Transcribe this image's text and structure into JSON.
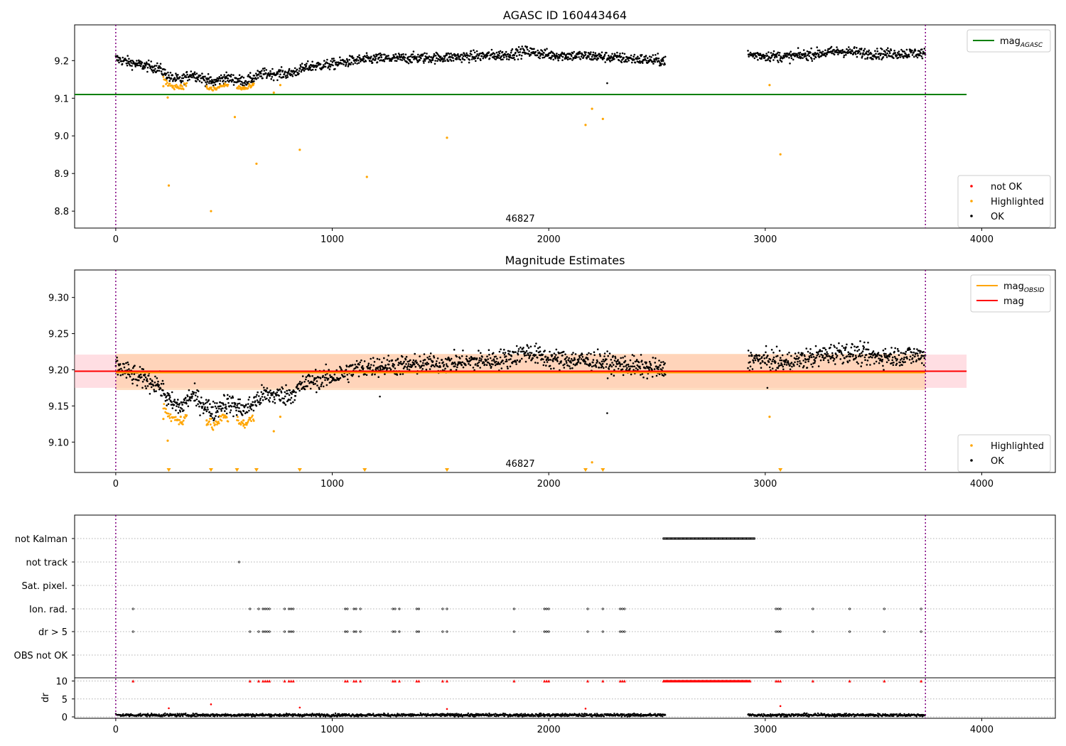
{
  "chart_data": [
    {
      "type": "scatter",
      "title": "AGASC ID 160443464",
      "annotation": "46827",
      "xlim": [
        -190,
        4340
      ],
      "ylim": [
        8.755,
        9.295
      ],
      "x_ticks": [
        0,
        1000,
        2000,
        3000,
        4000
      ],
      "y_ticks": [
        8.8,
        8.9,
        9.0,
        9.1,
        9.2
      ],
      "vlines": [
        0,
        3740
      ],
      "hline": {
        "name": "mag_AGASC",
        "y": 9.11,
        "x_range": [
          -190,
          3930
        ],
        "color": "#008000"
      },
      "legend_upper": {
        "position": "top-right",
        "entries": [
          {
            "label": "mag",
            "sub": "AGASC",
            "color": "#008000"
          }
        ]
      },
      "legend_lower": {
        "position": "bottom-right",
        "entries": [
          {
            "label": "not OK",
            "color": "#ff0000"
          },
          {
            "label": "Highlighted",
            "color": "#ffa500"
          },
          {
            "label": "OK",
            "color": "#000000"
          }
        ]
      },
      "series": [
        {
          "name": "OK",
          "color": "#000000",
          "trend": [
            [
              0,
              9.205
            ],
            [
              100,
              9.19
            ],
            [
              200,
              9.18
            ],
            [
              250,
              9.155
            ],
            [
              300,
              9.148
            ],
            [
              350,
              9.165
            ],
            [
              450,
              9.142
            ],
            [
              500,
              9.155
            ],
            [
              600,
              9.145
            ],
            [
              680,
              9.165
            ],
            [
              800,
              9.165
            ],
            [
              900,
              9.185
            ],
            [
              1000,
              9.19
            ],
            [
              1100,
              9.2
            ],
            [
              1200,
              9.205
            ],
            [
              1500,
              9.208
            ],
            [
              1800,
              9.215
            ],
            [
              1900,
              9.225
            ],
            [
              2000,
              9.215
            ],
            [
              2200,
              9.212
            ],
            [
              2520,
              9.2
            ],
            [
              2930,
              9.215
            ],
            [
              3100,
              9.21
            ],
            [
              3350,
              9.225
            ],
            [
              3500,
              9.218
            ],
            [
              3740,
              9.22
            ]
          ],
          "gaps": [
            [
              2540,
              2920
            ]
          ],
          "outliers": [
            [
              2270,
              9.14
            ]
          ]
        },
        {
          "name": "Highlighted",
          "color": "#ffa500",
          "points": [
            [
              220,
              9.132
            ],
            [
              240,
              9.102
            ],
            [
              245,
              8.868
            ],
            [
              300,
              9.135
            ],
            [
              420,
              9.13
            ],
            [
              440,
              8.8
            ],
            [
              550,
              9.05
            ],
            [
              590,
              9.13
            ],
            [
              650,
              8.926
            ],
            [
              730,
              9.115
            ],
            [
              760,
              9.135
            ],
            [
              850,
              8.963
            ],
            [
              1160,
              8.891
            ],
            [
              1530,
              8.995
            ],
            [
              2170,
              9.029
            ],
            [
              2200,
              9.072
            ],
            [
              2250,
              9.045
            ],
            [
              3020,
              9.135
            ],
            [
              3070,
              8.951
            ]
          ]
        }
      ]
    },
    {
      "type": "scatter",
      "title": "Magnitude Estimates",
      "annotation": "46827",
      "xlim": [
        -190,
        4340
      ],
      "ylim": [
        9.058,
        9.338
      ],
      "x_ticks": [
        0,
        1000,
        2000,
        3000,
        4000
      ],
      "y_ticks": [
        9.1,
        9.15,
        9.2,
        9.25,
        9.3
      ],
      "vlines": [
        0,
        3740
      ],
      "lines": [
        {
          "name": "mag_OBSID",
          "y": 9.196,
          "x_range": [
            0,
            3740
          ],
          "color": "#ffa500",
          "band": [
            9.172,
            9.222
          ]
        },
        {
          "name": "mag",
          "y": 9.198,
          "x_range": [
            -190,
            3930
          ],
          "color": "#ff0000",
          "band": [
            9.175,
            9.221
          ]
        }
      ],
      "legend_upper": {
        "position": "top-right",
        "entries": [
          {
            "label": "mag",
            "sub": "OBSID",
            "color": "#ffa500"
          },
          {
            "label": "mag",
            "color": "#ff0000"
          }
        ]
      },
      "legend_lower": {
        "position": "bottom-right",
        "entries": [
          {
            "label": "Highlighted",
            "color": "#ffa500"
          },
          {
            "label": "OK",
            "color": "#000000"
          }
        ]
      },
      "lower_limit_markers_x": [
        245,
        440,
        560,
        650,
        850,
        1150,
        1530,
        2170,
        2250,
        3070
      ],
      "series": [
        {
          "name": "OK",
          "color": "#000000",
          "trend": [
            [
              0,
              9.205
            ],
            [
              100,
              9.19
            ],
            [
              200,
              9.18
            ],
            [
              250,
              9.155
            ],
            [
              300,
              9.148
            ],
            [
              350,
              9.165
            ],
            [
              450,
              9.142
            ],
            [
              500,
              9.155
            ],
            [
              600,
              9.145
            ],
            [
              680,
              9.165
            ],
            [
              800,
              9.165
            ],
            [
              900,
              9.185
            ],
            [
              1000,
              9.19
            ],
            [
              1100,
              9.2
            ],
            [
              1200,
              9.205
            ],
            [
              1500,
              9.208
            ],
            [
              1800,
              9.215
            ],
            [
              1900,
              9.225
            ],
            [
              2000,
              9.215
            ],
            [
              2200,
              9.212
            ],
            [
              2520,
              9.2
            ],
            [
              2930,
              9.215
            ],
            [
              3100,
              9.21
            ],
            [
              3350,
              9.225
            ],
            [
              3500,
              9.218
            ],
            [
              3740,
              9.22
            ]
          ],
          "gaps": [
            [
              2540,
              2920
            ]
          ],
          "outliers": [
            [
              2270,
              9.14
            ],
            [
              1220,
              9.163
            ],
            [
              3010,
              9.175
            ]
          ]
        },
        {
          "name": "Highlighted",
          "color": "#ffa500",
          "points": [
            [
              220,
              9.132
            ],
            [
              240,
              9.102
            ],
            [
              300,
              9.135
            ],
            [
              420,
              9.13
            ],
            [
              590,
              9.13
            ],
            [
              730,
              9.115
            ],
            [
              760,
              9.135
            ],
            [
              3020,
              9.135
            ],
            [
              2200,
              9.072
            ]
          ]
        }
      ]
    },
    {
      "type": "scatter",
      "title": "",
      "xlim": [
        -190,
        4340
      ],
      "x_ticks": [
        0,
        1000,
        2000,
        3000,
        4000
      ],
      "vlines": [
        0,
        3740
      ],
      "flag_rows": [
        "not Kalman",
        "not track",
        "Sat. pixel.",
        "Ion. rad.",
        "dr > 5",
        "OBS not OK"
      ],
      "flags": {
        "not Kalman": {
          "ranges": [
            [
              2530,
              2950
            ]
          ],
          "x": []
        },
        "not track": {
          "x": [
            570
          ]
        },
        "Sat. pixel.": {
          "x": []
        },
        "Ion. rad.": {
          "x": [
            80,
            620,
            660,
            680,
            690,
            700,
            710,
            780,
            800,
            810,
            820,
            1060,
            1070,
            1100,
            1110,
            1130,
            1280,
            1290,
            1310,
            1390,
            1400,
            1510,
            1530,
            1840,
            1980,
            1990,
            2000,
            2180,
            2250,
            2330,
            2340,
            2350,
            3050,
            3060,
            3070,
            3220,
            3390,
            3550,
            3720
          ]
        },
        "dr > 5": {
          "x": [
            80,
            620,
            660,
            680,
            690,
            700,
            710,
            780,
            800,
            810,
            820,
            1060,
            1070,
            1100,
            1110,
            1130,
            1280,
            1290,
            1310,
            1390,
            1400,
            1510,
            1530,
            1840,
            1980,
            1990,
            2000,
            2180,
            2250,
            2330,
            2340,
            2350,
            3050,
            3060,
            3070,
            3220,
            3390,
            3550,
            3720
          ]
        },
        "OBS not OK": {
          "x": []
        }
      },
      "dr": {
        "ylabel": "dr",
        "ylim": [
          0,
          10.5
        ],
        "y_ticks": [
          0,
          5,
          10
        ],
        "level": 0.5,
        "gaps": [
          [
            2540,
            2920
          ]
        ],
        "outliers": [
          [
            245,
            2.4
          ],
          [
            440,
            3.5
          ],
          [
            850,
            2.6
          ],
          [
            1530,
            2.2
          ],
          [
            2170,
            2.3
          ],
          [
            3070,
            3.0
          ]
        ],
        "capped_markers_y": 10
      }
    }
  ]
}
